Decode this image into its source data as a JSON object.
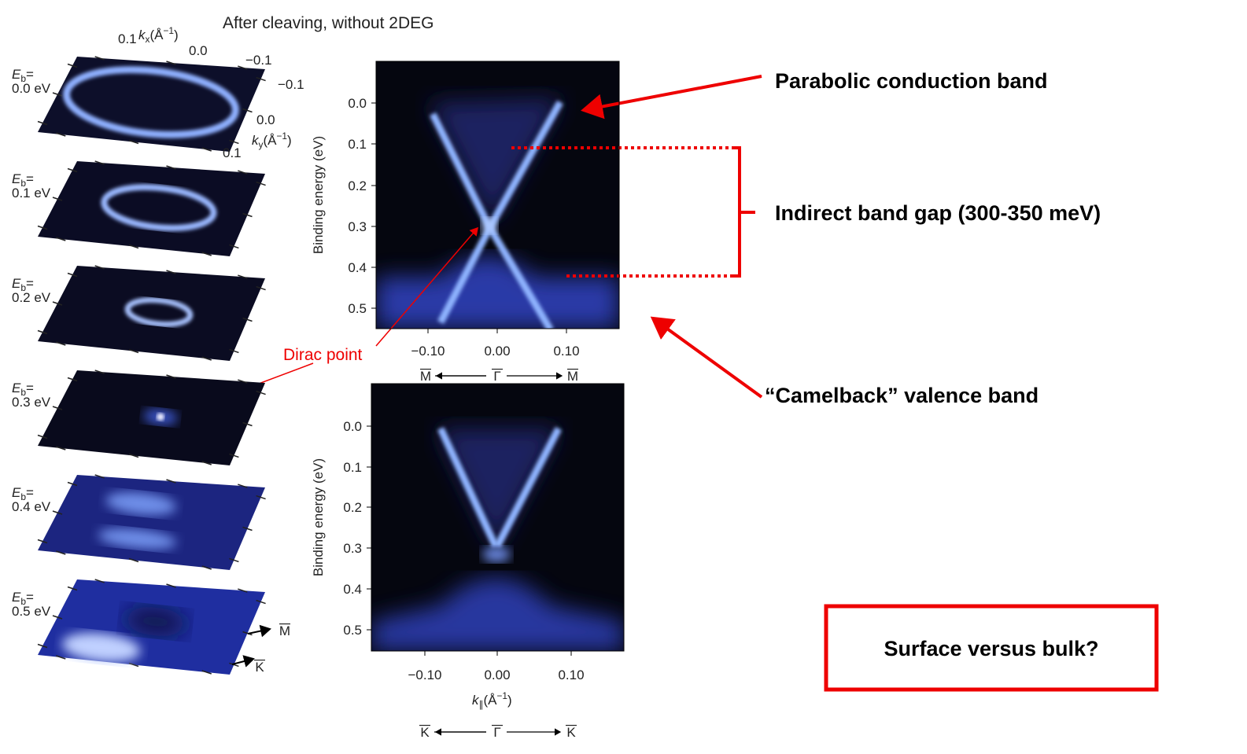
{
  "title": "After cleaving, without 2DEG",
  "maps": {
    "energy_symbol": "E",
    "energy_subscript": "b",
    "equals": "=",
    "energies": [
      "0.0 eV",
      "0.1 eV",
      "0.2 eV",
      "0.3 eV",
      "0.4 eV",
      "0.5 eV"
    ],
    "kx_label": {
      "symbol": "k",
      "subscript": "x",
      "unit_open": "(Å",
      "exponent": "−1",
      "unit_close": ")"
    },
    "kx_ticks": [
      "0.1",
      "0.0",
      "−0.1"
    ],
    "ky_label": {
      "symbol": "k",
      "subscript": "y",
      "unit_open": "(Å",
      "exponent": "−1",
      "unit_close": ")"
    },
    "ky_ticks": [
      "−0.1",
      "0.0",
      "0.1"
    ],
    "directions": [
      "M",
      "K"
    ]
  },
  "band_panels": {
    "y_label": "Binding energy (eV)",
    "y_ticks": [
      "0.0",
      "0.1",
      "0.2",
      "0.3",
      "0.4",
      "0.5"
    ],
    "x_ticks": [
      "−0.10",
      "0.00",
      "0.10"
    ],
    "x_label": {
      "symbol": "k",
      "subscript": "∥",
      "unit_open": "(Å",
      "exponent": "−1",
      "unit_close": ")"
    },
    "top_path": [
      "M",
      "Γ",
      "M"
    ],
    "bottom_path": [
      "K",
      "Γ",
      "K"
    ]
  },
  "annotations": {
    "dirac_point": "Dirac point",
    "conduction_band": "Parabolic conduction band",
    "band_gap": "Indirect band gap (300-350 meV)",
    "valence_band": "“Camelback” valence band",
    "question": "Surface versus bulk?"
  }
}
